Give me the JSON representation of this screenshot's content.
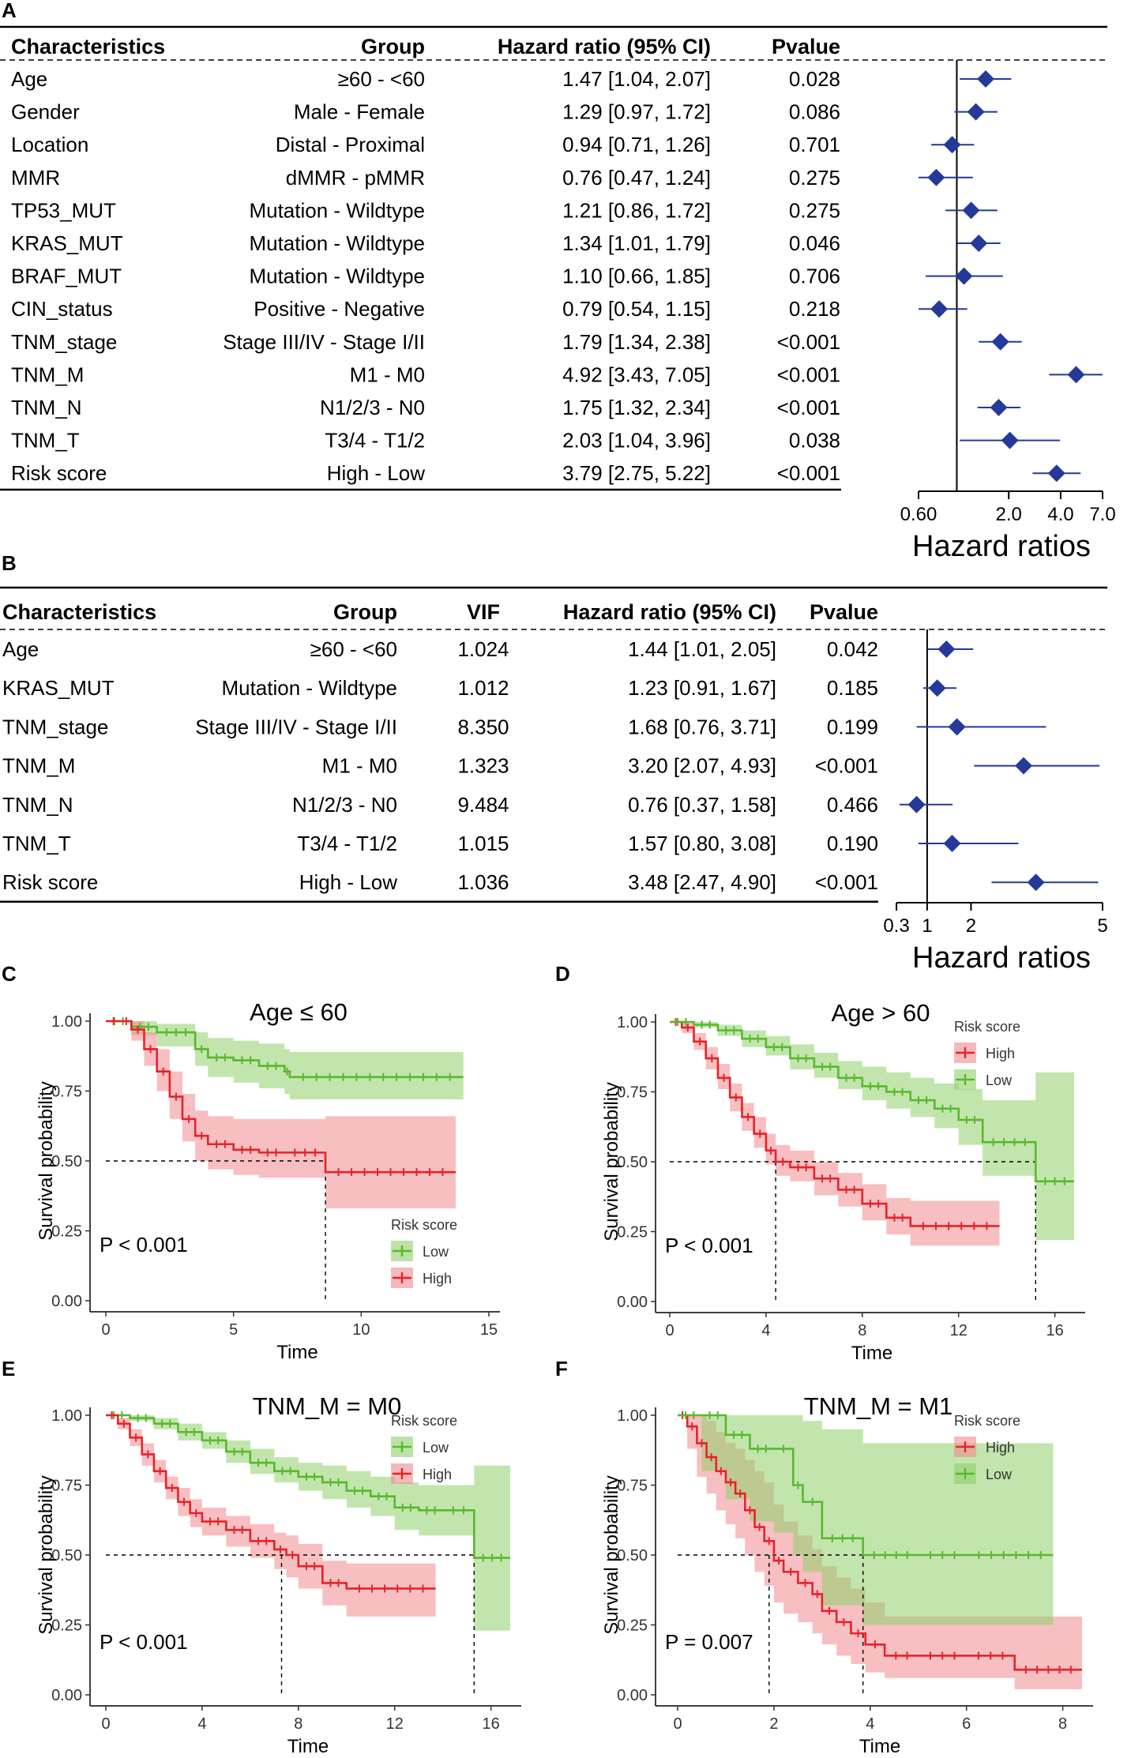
{
  "panels": {
    "A": "A",
    "B": "B",
    "C": "C",
    "D": "D",
    "E": "E",
    "F": "F"
  },
  "chart_data": [
    {
      "type": "forest",
      "panel": "A",
      "columns": [
        "Characteristics",
        "Group",
        "Hazard ratio (95% CI)",
        "Pvalue"
      ],
      "rows": [
        {
          "char": "Age",
          "group": "≥60 - <60",
          "hr_text": "1.47 [1.04, 2.07]",
          "p": "0.028",
          "hr": 1.47,
          "lo": 1.04,
          "hi": 2.07
        },
        {
          "char": "Gender",
          "group": "Male - Female",
          "hr_text": "1.29 [0.97, 1.72]",
          "p": "0.086",
          "hr": 1.29,
          "lo": 0.97,
          "hi": 1.72
        },
        {
          "char": "Location",
          "group": "Distal - Proximal",
          "hr_text": "0.94 [0.71, 1.26]",
          "p": "0.701",
          "hr": 0.94,
          "lo": 0.71,
          "hi": 1.26
        },
        {
          "char": "MMR",
          "group": "dMMR - pMMR",
          "hr_text": "0.76 [0.47, 1.24]",
          "p": "0.275",
          "hr": 0.76,
          "lo": 0.47,
          "hi": 1.24
        },
        {
          "char": "TP53_MUT",
          "group": "Mutation - Wildtype",
          "hr_text": "1.21 [0.86, 1.72]",
          "p": "0.275",
          "hr": 1.21,
          "lo": 0.86,
          "hi": 1.72
        },
        {
          "char": "KRAS_MUT",
          "group": "Mutation - Wildtype",
          "hr_text": "1.34 [1.01, 1.79]",
          "p": "0.046",
          "hr": 1.34,
          "lo": 1.01,
          "hi": 1.79
        },
        {
          "char": "BRAF_MUT",
          "group": "Mutation - Wildtype",
          "hr_text": "1.10 [0.66, 1.85]",
          "p": "0.706",
          "hr": 1.1,
          "lo": 0.66,
          "hi": 1.85
        },
        {
          "char": "CIN_status",
          "group": "Positive - Negative",
          "hr_text": "0.79 [0.54, 1.15]",
          "p": "0.218",
          "hr": 0.79,
          "lo": 0.54,
          "hi": 1.15
        },
        {
          "char": "TNM_stage",
          "group": "Stage III/IV - Stage I/II",
          "hr_text": "1.79 [1.34, 2.38]",
          "p": "<0.001",
          "hr": 1.79,
          "lo": 1.34,
          "hi": 2.38
        },
        {
          "char": "TNM_M",
          "group": "M1 - M0",
          "hr_text": "4.92 [3.43, 7.05]",
          "p": "<0.001",
          "hr": 4.92,
          "lo": 3.43,
          "hi": 7.05
        },
        {
          "char": "TNM_N",
          "group": "N1/2/3 - N0",
          "hr_text": "1.75 [1.32, 2.34]",
          "p": "<0.001",
          "hr": 1.75,
          "lo": 1.32,
          "hi": 2.34
        },
        {
          "char": "TNM_T",
          "group": "T3/4 - T1/2",
          "hr_text": "2.03 [1.04, 3.96]",
          "p": "0.038",
          "hr": 2.03,
          "lo": 1.04,
          "hi": 3.96
        },
        {
          "char": "Risk score",
          "group": "High - Low",
          "hr_text": "3.79 [2.75, 5.22]",
          "p": "<0.001",
          "hr": 3.79,
          "lo": 2.75,
          "hi": 5.22
        }
      ],
      "xscale": "log",
      "xlim": [
        0.6,
        7.0
      ],
      "ref_line": 1,
      "xticks": [
        {
          "v": 0.6,
          "label": "0.60"
        },
        {
          "v": 2.0,
          "label": "2.0"
        },
        {
          "v": 4.0,
          "label": "4.0"
        },
        {
          "v": 7.0,
          "label": "7.0"
        }
      ],
      "xlabel": "Hazard ratios",
      "marker_color": "#24399a"
    },
    {
      "type": "forest",
      "panel": "B",
      "columns": [
        "Characteristics",
        "Group",
        "VIF",
        "Hazard ratio (95% CI)",
        "Pvalue"
      ],
      "rows": [
        {
          "char": "Age",
          "group": "≥60 - <60",
          "vif": "1.024",
          "hr_text": "1.44 [1.01, 2.05]",
          "p": "0.042",
          "hr": 1.44,
          "lo": 1.01,
          "hi": 2.05
        },
        {
          "char": "KRAS_MUT",
          "group": "Mutation - Wildtype",
          "vif": "1.012",
          "hr_text": "1.23 [0.91, 1.67]",
          "p": "0.185",
          "hr": 1.23,
          "lo": 0.91,
          "hi": 1.67
        },
        {
          "char": "TNM_stage",
          "group": "Stage III/IV - Stage I/II",
          "vif": "8.350",
          "hr_text": "1.68 [0.76, 3.71]",
          "p": "0.199",
          "hr": 1.68,
          "lo": 0.76,
          "hi": 3.71
        },
        {
          "char": "TNM_M",
          "group": "M1 - M0",
          "vif": "1.323",
          "hr_text": "3.20 [2.07, 4.93]",
          "p": "<0.001",
          "hr": 3.2,
          "lo": 2.07,
          "hi": 4.93
        },
        {
          "char": "TNM_N",
          "group": "N1/2/3 - N0",
          "vif": "9.484",
          "hr_text": "0.76 [0.37, 1.58]",
          "p": "0.466",
          "hr": 0.76,
          "lo": 0.37,
          "hi": 1.58
        },
        {
          "char": "TNM_T",
          "group": "T3/4 - T1/2",
          "vif": "1.015",
          "hr_text": "1.57 [0.80, 3.08]",
          "p": "0.190",
          "hr": 1.57,
          "lo": 0.8,
          "hi": 3.08
        },
        {
          "char": "Risk score",
          "group": "High - Low",
          "vif": "1.036",
          "hr_text": "3.48 [2.47, 4.90]",
          "p": "<0.001",
          "hr": 3.48,
          "lo": 2.47,
          "hi": 4.9
        }
      ],
      "xscale": "linear",
      "xlim": [
        0.3,
        5.0
      ],
      "ref_line": 1,
      "xticks": [
        {
          "v": 0.3,
          "label": "0.3"
        },
        {
          "v": 1,
          "label": "1"
        },
        {
          "v": 2,
          "label": "2"
        },
        {
          "v": 5,
          "label": "5"
        }
      ],
      "xlabel": "Hazard ratios",
      "marker_color": "#24399a"
    },
    {
      "type": "line",
      "subtype": "kaplan-meier",
      "panel": "C",
      "title": "Age ≤ 60",
      "xlabel": "Time",
      "ylabel": "Survival probability",
      "xlim": [
        0,
        15
      ],
      "xticks": [
        0,
        5,
        10,
        15
      ],
      "ylim": [
        0,
        1
      ],
      "yticks": [
        "0.00",
        "0.25",
        "0.50",
        "0.75",
        "1.00"
      ],
      "pvalue": "P < 0.001",
      "legend": {
        "title": "Risk score",
        "items": [
          "Low",
          "High"
        ],
        "position": "bottom-right"
      },
      "median_lines": [
        8.6
      ],
      "series": [
        {
          "name": "Low",
          "color": "#5ab82e",
          "band": "#8fcf6a",
          "x": [
            0,
            1,
            2,
            3.5,
            4,
            5,
            6,
            7,
            7.2,
            14
          ],
          "y": [
            1.0,
            0.98,
            0.96,
            0.9,
            0.87,
            0.86,
            0.84,
            0.82,
            0.8,
            0.8
          ],
          "lo": [
            1.0,
            0.95,
            0.91,
            0.84,
            0.8,
            0.78,
            0.76,
            0.74,
            0.72,
            0.72
          ],
          "hi": [
            1.0,
            1.0,
            0.99,
            0.96,
            0.94,
            0.93,
            0.92,
            0.9,
            0.89,
            0.89
          ]
        },
        {
          "name": "High",
          "color": "#e8222a",
          "band": "#f08a8e",
          "x": [
            0,
            0.6,
            1.0,
            1.5,
            2.0,
            2.5,
            3.0,
            3.5,
            4.0,
            5.0,
            6.0,
            7.0,
            8.6,
            13.7
          ],
          "y": [
            1.0,
            1.0,
            0.97,
            0.9,
            0.82,
            0.73,
            0.65,
            0.59,
            0.56,
            0.54,
            0.53,
            0.53,
            0.46,
            0.46
          ],
          "lo": [
            1.0,
            1.0,
            0.93,
            0.84,
            0.75,
            0.65,
            0.57,
            0.5,
            0.47,
            0.45,
            0.44,
            0.44,
            0.33,
            0.33
          ],
          "hi": [
            1.0,
            1.0,
            1.0,
            0.96,
            0.9,
            0.82,
            0.74,
            0.68,
            0.66,
            0.65,
            0.65,
            0.65,
            0.66,
            0.66
          ]
        }
      ]
    },
    {
      "type": "line",
      "subtype": "kaplan-meier",
      "panel": "D",
      "title": "Age > 60",
      "xlabel": "Time",
      "ylabel": "Survival probability",
      "xlim": [
        0,
        16.8
      ],
      "xticks": [
        0,
        4,
        8,
        12,
        16
      ],
      "ylim": [
        0,
        1
      ],
      "yticks": [
        "0.00",
        "0.25",
        "0.50",
        "0.75",
        "1.00"
      ],
      "pvalue": "P < 0.001",
      "legend": {
        "title": "Risk score",
        "items": [
          "High",
          "Low"
        ],
        "position": "top-right"
      },
      "median_lines": [
        4.4,
        15.2
      ],
      "series": [
        {
          "name": "High",
          "color": "#e8222a",
          "band": "#f08a8e",
          "x": [
            0,
            0.5,
            1,
            1.5,
            2,
            2.5,
            3,
            3.5,
            4,
            4.4,
            5,
            6,
            7,
            8,
            9,
            10,
            13.7
          ],
          "y": [
            1.0,
            0.98,
            0.93,
            0.87,
            0.8,
            0.73,
            0.66,
            0.6,
            0.54,
            0.5,
            0.48,
            0.44,
            0.4,
            0.35,
            0.3,
            0.27,
            0.27
          ],
          "lo": [
            1.0,
            0.96,
            0.9,
            0.83,
            0.76,
            0.68,
            0.61,
            0.55,
            0.49,
            0.45,
            0.43,
            0.38,
            0.34,
            0.29,
            0.24,
            0.2,
            0.2
          ],
          "hi": [
            1.0,
            1.0,
            0.96,
            0.91,
            0.85,
            0.78,
            0.71,
            0.66,
            0.6,
            0.56,
            0.54,
            0.5,
            0.46,
            0.42,
            0.37,
            0.36,
            0.36
          ]
        },
        {
          "name": "Low",
          "color": "#5ab82e",
          "band": "#8fcf6a",
          "x": [
            0,
            1,
            2,
            3,
            4,
            5,
            6,
            7,
            8,
            9,
            10,
            11,
            12,
            13,
            15.2,
            16.8
          ],
          "y": [
            1.0,
            0.99,
            0.97,
            0.94,
            0.91,
            0.87,
            0.84,
            0.8,
            0.77,
            0.75,
            0.72,
            0.69,
            0.65,
            0.57,
            0.43,
            0.43
          ],
          "lo": [
            1.0,
            0.98,
            0.95,
            0.91,
            0.88,
            0.83,
            0.8,
            0.76,
            0.72,
            0.69,
            0.66,
            0.62,
            0.56,
            0.45,
            0.22,
            0.22
          ],
          "hi": [
            1.0,
            1.0,
            0.99,
            0.97,
            0.95,
            0.92,
            0.89,
            0.86,
            0.84,
            0.82,
            0.8,
            0.78,
            0.76,
            0.72,
            0.82,
            0.82
          ]
        }
      ]
    },
    {
      "type": "line",
      "subtype": "kaplan-meier",
      "panel": "E",
      "title": "TNM_M = M0",
      "xlabel": "Time",
      "ylabel": "Survival probability",
      "xlim": [
        0,
        16.8
      ],
      "xticks": [
        0,
        4,
        8,
        12,
        16
      ],
      "ylim": [
        0,
        1
      ],
      "yticks": [
        "0.00",
        "0.25",
        "0.50",
        "0.75",
        "1.00"
      ],
      "pvalue": "P < 0.001",
      "legend": {
        "title": "Risk score",
        "items": [
          "Low",
          "High"
        ],
        "position": "top-right"
      },
      "median_lines": [
        7.3,
        15.3
      ],
      "series": [
        {
          "name": "Low",
          "color": "#5ab82e",
          "band": "#8fcf6a",
          "x": [
            0,
            1,
            2,
            3,
            4,
            5,
            6,
            7,
            8,
            9,
            10,
            11,
            12,
            13,
            14,
            15.3,
            16.8
          ],
          "y": [
            1.0,
            0.99,
            0.97,
            0.94,
            0.91,
            0.87,
            0.83,
            0.8,
            0.78,
            0.76,
            0.73,
            0.71,
            0.67,
            0.66,
            0.66,
            0.49,
            0.49
          ],
          "lo": [
            1.0,
            0.98,
            0.95,
            0.91,
            0.88,
            0.83,
            0.79,
            0.76,
            0.73,
            0.7,
            0.67,
            0.64,
            0.59,
            0.57,
            0.57,
            0.23,
            0.23
          ],
          "hi": [
            1.0,
            1.0,
            0.99,
            0.97,
            0.94,
            0.91,
            0.88,
            0.85,
            0.83,
            0.82,
            0.8,
            0.78,
            0.76,
            0.75,
            0.75,
            0.82,
            0.82
          ]
        },
        {
          "name": "High",
          "color": "#e8222a",
          "band": "#f08a8e",
          "x": [
            0,
            0.5,
            1,
            1.5,
            2,
            2.5,
            3,
            3.5,
            4,
            5,
            6,
            7,
            7.5,
            8,
            9,
            10,
            13.7
          ],
          "y": [
            1.0,
            0.97,
            0.92,
            0.86,
            0.8,
            0.74,
            0.69,
            0.65,
            0.62,
            0.59,
            0.55,
            0.52,
            0.5,
            0.46,
            0.4,
            0.38,
            0.38
          ],
          "lo": [
            1.0,
            0.95,
            0.89,
            0.82,
            0.76,
            0.7,
            0.64,
            0.6,
            0.57,
            0.53,
            0.49,
            0.45,
            0.42,
            0.38,
            0.32,
            0.28,
            0.28
          ],
          "hi": [
            1.0,
            0.99,
            0.95,
            0.9,
            0.84,
            0.78,
            0.74,
            0.7,
            0.67,
            0.64,
            0.61,
            0.58,
            0.57,
            0.54,
            0.48,
            0.47,
            0.47
          ]
        }
      ]
    },
    {
      "type": "line",
      "subtype": "kaplan-meier",
      "panel": "F",
      "title": "TNM_M = M1",
      "xlabel": "Time",
      "ylabel": "Survival probability",
      "xlim": [
        0,
        8.4
      ],
      "xticks": [
        0,
        2,
        4,
        6,
        8
      ],
      "ylim": [
        0,
        1
      ],
      "yticks": [
        "0.00",
        "0.25",
        "0.50",
        "0.75",
        "1.00"
      ],
      "pvalue": "P = 0.007",
      "legend": {
        "title": "Risk score",
        "items": [
          "High",
          "Low"
        ],
        "position": "top-right"
      },
      "median_lines": [
        1.9,
        3.85
      ],
      "series": [
        {
          "name": "High",
          "color": "#e8222a",
          "band": "#f08a8e",
          "x": [
            0,
            0.2,
            0.4,
            0.6,
            0.8,
            1.0,
            1.2,
            1.4,
            1.6,
            1.8,
            2.0,
            2.2,
            2.5,
            2.8,
            3.0,
            3.3,
            3.6,
            3.9,
            4.3,
            5.0,
            6.0,
            7.0,
            8.4
          ],
          "y": [
            1.0,
            0.96,
            0.9,
            0.85,
            0.8,
            0.76,
            0.72,
            0.66,
            0.6,
            0.55,
            0.48,
            0.44,
            0.4,
            0.36,
            0.3,
            0.26,
            0.22,
            0.18,
            0.14,
            0.14,
            0.14,
            0.09,
            0.09
          ],
          "lo": [
            1.0,
            0.88,
            0.78,
            0.72,
            0.66,
            0.61,
            0.56,
            0.5,
            0.44,
            0.39,
            0.33,
            0.29,
            0.26,
            0.22,
            0.18,
            0.14,
            0.11,
            0.08,
            0.06,
            0.06,
            0.06,
            0.02,
            0.02
          ],
          "hi": [
            1.0,
            1.0,
            1.0,
            0.98,
            0.94,
            0.9,
            0.88,
            0.84,
            0.8,
            0.76,
            0.68,
            0.62,
            0.57,
            0.52,
            0.46,
            0.42,
            0.38,
            0.33,
            0.28,
            0.28,
            0.28,
            0.28,
            0.28
          ]
        },
        {
          "name": "Low",
          "color": "#5ab82e",
          "band": "#8fcf6a",
          "x": [
            0,
            0.5,
            1.0,
            1.5,
            2.0,
            2.4,
            2.6,
            3.0,
            3.85,
            5.0,
            6.0,
            7.8
          ],
          "y": [
            1.0,
            1.0,
            0.93,
            0.88,
            0.88,
            0.75,
            0.69,
            0.56,
            0.5,
            0.5,
            0.5,
            0.5
          ],
          "lo": [
            1.0,
            0.8,
            0.7,
            0.62,
            0.58,
            0.5,
            0.44,
            0.32,
            0.25,
            0.25,
            0.25,
            0.25
          ],
          "hi": [
            1.0,
            1.0,
            1.0,
            1.0,
            1.0,
            1.0,
            0.98,
            0.95,
            0.9,
            0.9,
            0.9,
            0.9
          ]
        }
      ]
    }
  ]
}
